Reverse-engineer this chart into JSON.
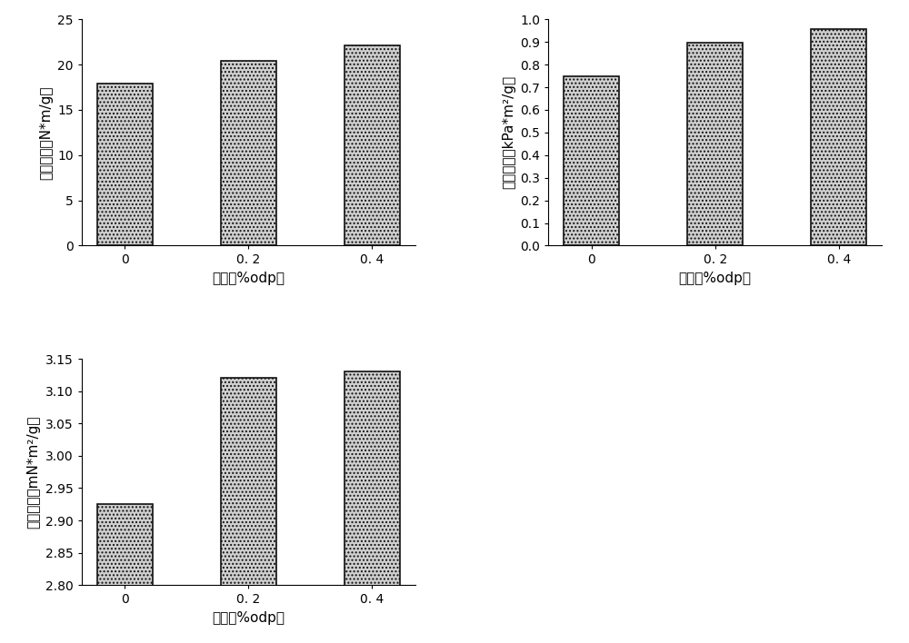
{
  "categories": [
    "0",
    "0. 2",
    "0. 4"
  ],
  "xlabel": "用量（%odp）",
  "bar_color": "#d0d0d0",
  "bar_edgecolor": "#111111",
  "bar_linewidth": 1.2,
  "bar_hatch": "....",
  "plot1": {
    "values": [
      17.9,
      20.4,
      22.1
    ],
    "ylabel": "抗张指数（N*m/g）",
    "ylim": [
      0,
      25
    ],
    "yticks": [
      0,
      5,
      10,
      15,
      20,
      25
    ]
  },
  "plot2": {
    "values": [
      0.75,
      0.895,
      0.955
    ],
    "ylabel": "耐破指数（kPa*m²/g）",
    "ylim": [
      0.0,
      1.0
    ],
    "yticks": [
      0.0,
      0.1,
      0.2,
      0.3,
      0.4,
      0.5,
      0.6,
      0.7,
      0.8,
      0.9,
      1.0
    ]
  },
  "plot3": {
    "values": [
      2.925,
      3.12,
      3.13
    ],
    "ylabel": "撑裂指数（mN*m²/g）",
    "ylim": [
      2.8,
      3.15
    ],
    "yticks": [
      2.8,
      2.85,
      2.9,
      2.95,
      3.0,
      3.05,
      3.1,
      3.15
    ]
  },
  "background_color": "#ffffff",
  "tick_label_fontsize": 10,
  "axis_label_fontsize": 11,
  "bar_width": 0.45
}
